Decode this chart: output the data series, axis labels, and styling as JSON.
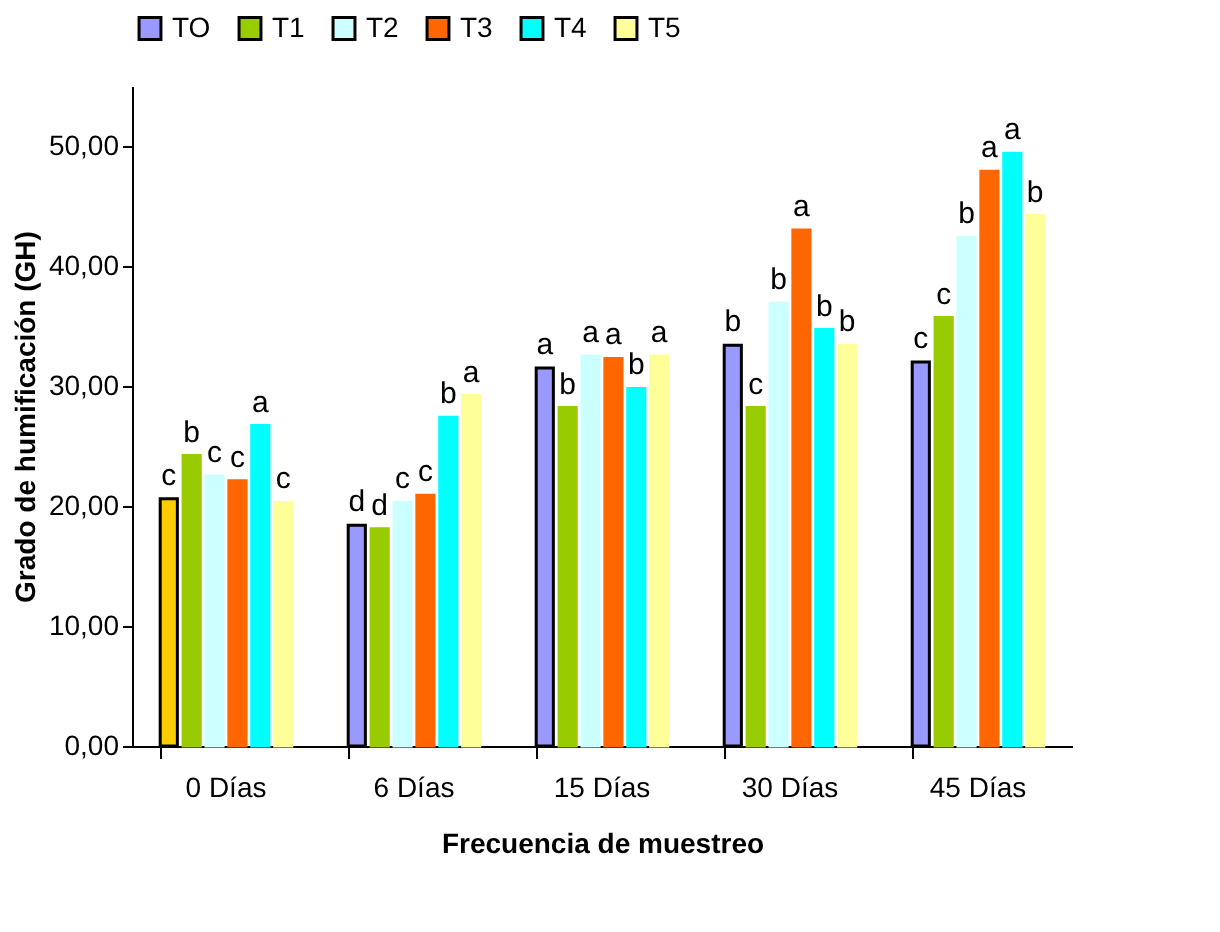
{
  "chart_data": {
    "type": "bar",
    "xlabel": "Frecuencia de muestreo",
    "ylabel": "Grado de humificación (GH)",
    "categories": [
      "0 Días",
      "6 Días",
      "15 Días",
      "30 Días",
      "45 Días"
    ],
    "ylim": [
      0,
      55
    ],
    "yticks": [
      {
        "value": 0,
        "label": "0,00"
      },
      {
        "value": 10,
        "label": "10,00"
      },
      {
        "value": 20,
        "label": "20,00"
      },
      {
        "value": 30,
        "label": "30,00"
      },
      {
        "value": 40,
        "label": "40,00"
      },
      {
        "value": 50,
        "label": "50,00"
      }
    ],
    "grid": false,
    "legend": "top",
    "series": [
      {
        "name": "TO",
        "color": "#9999ff",
        "colors": [
          "#ffcc00",
          "#9999ff",
          "#9999ff",
          "#9999ff",
          "#9999ff"
        ],
        "values": [
          20.6,
          18.4,
          31.5,
          33.4,
          32.0
        ],
        "value_labels": [
          "c",
          "d",
          "a",
          "b",
          "c"
        ]
      },
      {
        "name": "T1",
        "color": "#99cc00",
        "values": [
          24.2,
          18.1,
          28.2,
          28.2,
          35.7
        ],
        "value_labels": [
          "b",
          "d",
          "b",
          "c",
          "c"
        ]
      },
      {
        "name": "T2",
        "color": "#ccffff",
        "values": [
          22.5,
          20.3,
          32.5,
          36.9,
          42.4
        ],
        "value_labels": [
          "c",
          "c",
          "a",
          "b",
          "b"
        ]
      },
      {
        "name": "T3",
        "color": "#ff6600",
        "values": [
          22.1,
          20.9,
          32.3,
          43.0,
          47.9
        ],
        "value_labels": [
          "c",
          "c",
          "a",
          "a",
          "a"
        ]
      },
      {
        "name": "T4",
        "color": "#00ffff",
        "values": [
          26.7,
          27.4,
          29.8,
          34.7,
          49.4
        ],
        "value_labels": [
          "a",
          "b",
          "b",
          "b",
          "a"
        ]
      },
      {
        "name": "T5",
        "color": "#ffff99",
        "values": [
          20.3,
          29.2,
          32.5,
          33.4,
          44.2
        ],
        "value_labels": [
          "c",
          "a",
          "a",
          "b",
          "b"
        ]
      }
    ]
  }
}
